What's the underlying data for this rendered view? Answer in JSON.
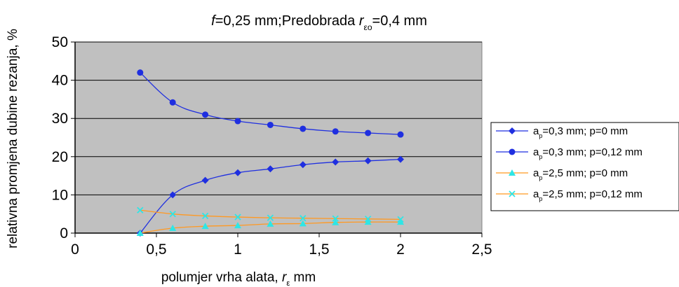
{
  "chart_data": {
    "type": "line",
    "title": {
      "parts": [
        {
          "text": "f",
          "italic": true
        },
        {
          "text": "=0,25 mm;Predobrada "
        },
        {
          "text": "r",
          "italic": true
        },
        {
          "text": "εo",
          "sub": true
        },
        {
          "text": "=0,4 mm"
        }
      ]
    },
    "xlabel": {
      "parts": [
        {
          "text": "polumjer  vrha alata, "
        },
        {
          "text": "r",
          "italic": true
        },
        {
          "text": "ε",
          "sub": true
        },
        {
          "text": " mm"
        }
      ]
    },
    "ylabel": "relativna promjena dubine rezanja, %",
    "xlim": [
      0,
      2.5
    ],
    "ylim": [
      0,
      50
    ],
    "xticks": [
      {
        "value": 0,
        "label": "0"
      },
      {
        "value": 0.5,
        "label": "0,5"
      },
      {
        "value": 1,
        "label": "1"
      },
      {
        "value": 1.5,
        "label": "1,5"
      },
      {
        "value": 2,
        "label": "2"
      },
      {
        "value": 2.5,
        "label": "2,5"
      }
    ],
    "yticks": [
      {
        "value": 0,
        "label": "0"
      },
      {
        "value": 10,
        "label": "10"
      },
      {
        "value": 20,
        "label": "20"
      },
      {
        "value": 30,
        "label": "30"
      },
      {
        "value": 40,
        "label": "40"
      },
      {
        "value": 50,
        "label": "50"
      }
    ],
    "grid": "horizontal",
    "plot_background": "#c0c0c0",
    "legend_position": "right",
    "x": [
      0.4,
      0.6,
      0.8,
      1.0,
      1.2,
      1.4,
      1.6,
      1.8,
      2.0
    ],
    "series": [
      {
        "name": "ap=0,3 mm; p=0 mm",
        "name_parts": [
          {
            "text": "a"
          },
          {
            "text": "p",
            "sub": true
          },
          {
            "text": "=0,3 mm; p=0 mm"
          }
        ],
        "values": [
          0,
          10,
          13.8,
          15.8,
          16.8,
          17.9,
          18.6,
          18.9,
          19.3
        ],
        "color": "#1f2fe0",
        "marker": "diamond"
      },
      {
        "name": "ap=0,3 mm; p=0,12 mm",
        "name_parts": [
          {
            "text": "a"
          },
          {
            "text": "p",
            "sub": true
          },
          {
            "text": "=0,3 mm; p=0,12 mm"
          }
        ],
        "values": [
          42,
          34.2,
          31.0,
          29.3,
          28.3,
          27.3,
          26.6,
          26.2,
          25.8
        ],
        "color": "#1f2fe0",
        "marker": "circle"
      },
      {
        "name": "ap=2,5 mm; p=0 mm",
        "name_parts": [
          {
            "text": "a"
          },
          {
            "text": "p",
            "sub": true
          },
          {
            "text": "=2,5 mm; p=0 mm"
          }
        ],
        "values": [
          0,
          1.3,
          1.8,
          2.0,
          2.4,
          2.5,
          2.8,
          2.9,
          2.9
        ],
        "color": "#ff9922",
        "marker_color": "#2ee6e6",
        "marker": "triangle"
      },
      {
        "name": "ap=2,5 mm; p=0,12 mm",
        "name_parts": [
          {
            "text": "a"
          },
          {
            "text": "p",
            "sub": true
          },
          {
            "text": "=2,5 mm; p=0,12 mm"
          }
        ],
        "values": [
          6,
          5,
          4.5,
          4.2,
          4.0,
          3.9,
          3.8,
          3.7,
          3.6
        ],
        "color": "#ff9922",
        "marker_color": "#2ee6e6",
        "marker": "x"
      }
    ]
  }
}
